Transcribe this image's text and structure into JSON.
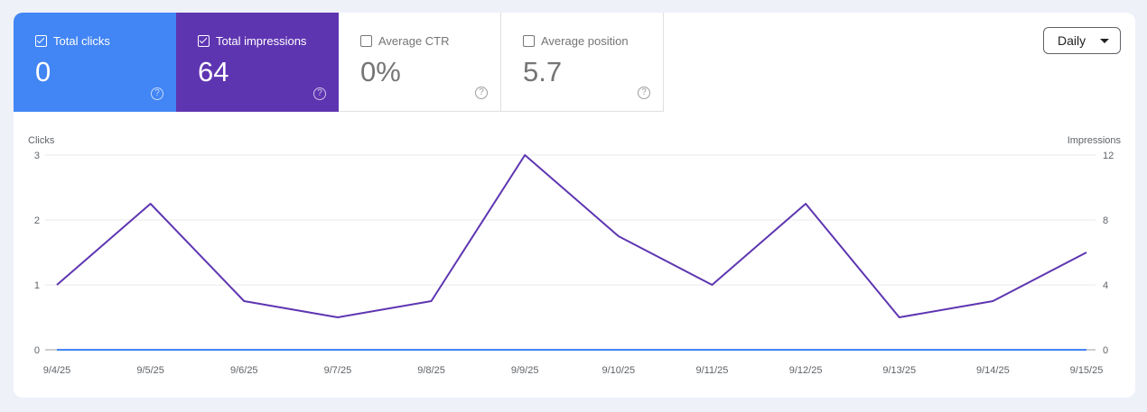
{
  "metrics": [
    {
      "label": "Total clicks",
      "value": "0",
      "checked": true,
      "color": "#4285f4"
    },
    {
      "label": "Total impressions",
      "value": "64",
      "checked": true,
      "color": "#5e35b1"
    },
    {
      "label": "Average CTR",
      "value": "0%",
      "checked": false
    },
    {
      "label": "Average position",
      "value": "5.7",
      "checked": false
    }
  ],
  "help_glyph": "?",
  "period_select": {
    "label": "Daily"
  },
  "chart_data": {
    "type": "line",
    "categories": [
      "9/4/25",
      "9/5/25",
      "9/6/25",
      "9/7/25",
      "9/8/25",
      "9/9/25",
      "9/10/25",
      "9/11/25",
      "9/12/25",
      "9/13/25",
      "9/14/25",
      "9/15/25"
    ],
    "series": [
      {
        "name": "Clicks",
        "axis": "left",
        "color": "#4285f4",
        "values": [
          0,
          0,
          0,
          0,
          0,
          0,
          0,
          0,
          0,
          0,
          0,
          0
        ]
      },
      {
        "name": "Impressions",
        "axis": "right",
        "color": "#5e35b1",
        "values": [
          4,
          9,
          3,
          2,
          3,
          12,
          7,
          4,
          9,
          2,
          3,
          6
        ]
      }
    ],
    "ylabel_left": "Clicks",
    "ylabel_right": "Impressions",
    "ylim_left": [
      0,
      3
    ],
    "yticks_left": [
      "0",
      "1",
      "2",
      "3"
    ],
    "ylim_right": [
      0,
      12
    ],
    "yticks_right": [
      "0",
      "4",
      "8",
      "12"
    ],
    "grid": true
  }
}
